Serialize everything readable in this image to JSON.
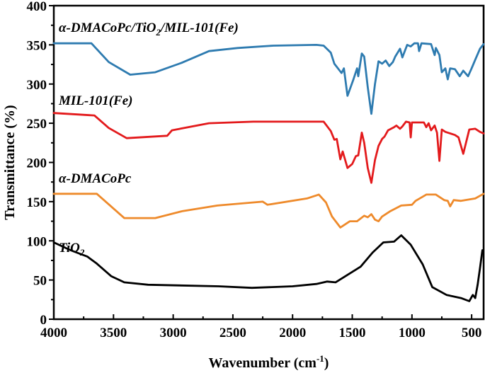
{
  "chart_data": {
    "type": "line",
    "title": "",
    "xlabel": "Wavenumber (cm⁻¹)",
    "ylabel": "Transmittance (%)",
    "xlim": [
      4000,
      400
    ],
    "ylim": [
      0,
      400
    ],
    "x_reversed": true,
    "grid": false,
    "legend": "inline labels above each curve",
    "xticks": [
      4000,
      3500,
      3000,
      2500,
      2000,
      1500,
      1000,
      500
    ],
    "xtick_labels": [
      "4000",
      "3500",
      "3000",
      "2500",
      "2000",
      "1500",
      "1000",
      "500"
    ],
    "yticks": [
      0,
      50,
      100,
      150,
      200,
      250,
      300,
      350,
      400
    ],
    "ytick_labels": [
      "0",
      "50",
      "100",
      "150",
      "200",
      "250",
      "300",
      "350",
      "400"
    ],
    "series": [
      {
        "name": "α-DMACoPc/TiO2/MIL-101(Fe)",
        "label_main": "α-DMACoPc/TiO",
        "label_sub": "2",
        "label_tail": "/MIL-101(Fe)",
        "color": "#2e7bb0",
        "points": [
          [
            4000,
            352
          ],
          [
            3685,
            352
          ],
          [
            3540,
            328
          ],
          [
            3360,
            312
          ],
          [
            3150,
            315
          ],
          [
            2930,
            327
          ],
          [
            2700,
            342
          ],
          [
            2460,
            346
          ],
          [
            2160,
            349
          ],
          [
            1800,
            350
          ],
          [
            1740,
            349
          ],
          [
            1680,
            340
          ],
          [
            1650,
            326
          ],
          [
            1610,
            318
          ],
          [
            1590,
            314
          ],
          [
            1570,
            320
          ],
          [
            1540,
            285
          ],
          [
            1490,
            306
          ],
          [
            1460,
            320
          ],
          [
            1450,
            310
          ],
          [
            1420,
            339
          ],
          [
            1400,
            335
          ],
          [
            1370,
            296
          ],
          [
            1340,
            262
          ],
          [
            1310,
            300
          ],
          [
            1280,
            329
          ],
          [
            1250,
            326
          ],
          [
            1220,
            330
          ],
          [
            1190,
            323
          ],
          [
            1160,
            328
          ],
          [
            1140,
            335
          ],
          [
            1100,
            345
          ],
          [
            1080,
            334
          ],
          [
            1040,
            350
          ],
          [
            1010,
            348
          ],
          [
            980,
            352
          ],
          [
            950,
            352
          ],
          [
            940,
            342
          ],
          [
            920,
            352
          ],
          [
            840,
            351
          ],
          [
            810,
            337
          ],
          [
            800,
            346
          ],
          [
            770,
            337
          ],
          [
            750,
            315
          ],
          [
            720,
            320
          ],
          [
            700,
            306
          ],
          [
            680,
            320
          ],
          [
            640,
            319
          ],
          [
            600,
            310
          ],
          [
            570,
            317
          ],
          [
            530,
            310
          ],
          [
            500,
            320
          ],
          [
            470,
            331
          ],
          [
            430,
            345
          ],
          [
            400,
            351
          ]
        ]
      },
      {
        "name": "MIL-101(Fe)",
        "label_main": "MIL-101(Fe)",
        "label_sub": "",
        "label_tail": "",
        "color": "#e31a1c",
        "points": [
          [
            4000,
            263
          ],
          [
            3660,
            260
          ],
          [
            3540,
            244
          ],
          [
            3390,
            231
          ],
          [
            3050,
            234
          ],
          [
            3010,
            241
          ],
          [
            2700,
            250
          ],
          [
            2330,
            252
          ],
          [
            1800,
            252
          ],
          [
            1740,
            252
          ],
          [
            1680,
            240
          ],
          [
            1650,
            229
          ],
          [
            1630,
            230
          ],
          [
            1600,
            204
          ],
          [
            1580,
            214
          ],
          [
            1540,
            193
          ],
          [
            1500,
            198
          ],
          [
            1470,
            208
          ],
          [
            1450,
            209
          ],
          [
            1420,
            238
          ],
          [
            1400,
            225
          ],
          [
            1370,
            193
          ],
          [
            1340,
            174
          ],
          [
            1310,
            203
          ],
          [
            1280,
            221
          ],
          [
            1250,
            230
          ],
          [
            1230,
            233
          ],
          [
            1200,
            241
          ],
          [
            1150,
            245
          ],
          [
            1130,
            247
          ],
          [
            1100,
            243
          ],
          [
            1080,
            246
          ],
          [
            1050,
            252
          ],
          [
            1020,
            251
          ],
          [
            1010,
            232
          ],
          [
            1000,
            251
          ],
          [
            900,
            251
          ],
          [
            880,
            245
          ],
          [
            860,
            250
          ],
          [
            840,
            241
          ],
          [
            810,
            247
          ],
          [
            790,
            238
          ],
          [
            770,
            202
          ],
          [
            750,
            242
          ],
          [
            720,
            239
          ],
          [
            640,
            235
          ],
          [
            610,
            232
          ],
          [
            570,
            211
          ],
          [
            520,
            242
          ],
          [
            470,
            243
          ],
          [
            430,
            239
          ],
          [
            400,
            237
          ]
        ]
      },
      {
        "name": "α-DMACoPc",
        "label_main": "α-DMACoPc",
        "label_sub": "",
        "label_tail": "",
        "color": "#ee8a2b",
        "points": [
          [
            4000,
            160
          ],
          [
            3640,
            160
          ],
          [
            3410,
            129
          ],
          [
            3150,
            129
          ],
          [
            2920,
            138
          ],
          [
            2630,
            145
          ],
          [
            2250,
            150
          ],
          [
            2210,
            146
          ],
          [
            1880,
            154
          ],
          [
            1780,
            159
          ],
          [
            1720,
            149
          ],
          [
            1670,
            131
          ],
          [
            1600,
            117
          ],
          [
            1520,
            125
          ],
          [
            1460,
            125
          ],
          [
            1400,
            132
          ],
          [
            1370,
            130
          ],
          [
            1340,
            134
          ],
          [
            1310,
            127
          ],
          [
            1280,
            125
          ],
          [
            1250,
            131
          ],
          [
            1180,
            138
          ],
          [
            1090,
            145
          ],
          [
            1000,
            146
          ],
          [
            970,
            151
          ],
          [
            880,
            159
          ],
          [
            800,
            159
          ],
          [
            730,
            152
          ],
          [
            700,
            151
          ],
          [
            680,
            144
          ],
          [
            650,
            152
          ],
          [
            590,
            151
          ],
          [
            470,
            154
          ],
          [
            400,
            160
          ]
        ]
      },
      {
        "name": "TiO2",
        "label_main": "TiO",
        "label_sub": "2",
        "label_tail": "",
        "color": "#000000",
        "points": [
          [
            4000,
            98
          ],
          [
            3860,
            88
          ],
          [
            3720,
            80
          ],
          [
            3640,
            71
          ],
          [
            3520,
            55
          ],
          [
            3410,
            47
          ],
          [
            3210,
            44
          ],
          [
            2620,
            42
          ],
          [
            2340,
            40
          ],
          [
            2000,
            42
          ],
          [
            1800,
            45
          ],
          [
            1710,
            48
          ],
          [
            1640,
            47
          ],
          [
            1430,
            67
          ],
          [
            1330,
            85
          ],
          [
            1240,
            98
          ],
          [
            1150,
            99
          ],
          [
            1090,
            107
          ],
          [
            1010,
            95
          ],
          [
            910,
            70
          ],
          [
            830,
            41
          ],
          [
            710,
            31
          ],
          [
            590,
            27
          ],
          [
            520,
            23
          ],
          [
            490,
            31
          ],
          [
            470,
            27
          ],
          [
            450,
            44
          ],
          [
            430,
            65
          ],
          [
            410,
            88
          ]
        ]
      }
    ]
  }
}
